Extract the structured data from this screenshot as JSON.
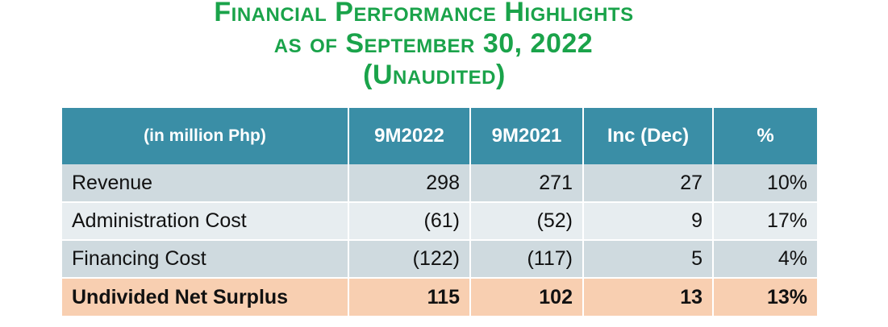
{
  "title": {
    "line1": "Financial Performance Highlights",
    "line2": "as of September 30, 2022",
    "line3": "(Unaudited)"
  },
  "colors": {
    "title_green": "#1aa34a",
    "header_teal": "#3a8ea6",
    "row_light": "#cfdadf",
    "row_lighter": "#e7edf0",
    "total_peach": "#f8cfb1"
  },
  "table": {
    "headers": [
      "(in million Php)",
      "9M2022",
      "9M2021",
      "Inc (Dec)",
      "%"
    ],
    "rows": [
      {
        "label": "Revenue",
        "y2022": "298",
        "y2021": "271",
        "inc": "27",
        "pct": "10%"
      },
      {
        "label": "Administration Cost",
        "y2022": "(61)",
        "y2021": "(52)",
        "inc": "9",
        "pct": "17%"
      },
      {
        "label": "Financing Cost",
        "y2022": "(122)",
        "y2021": "(117)",
        "inc": "5",
        "pct": "4%"
      },
      {
        "label": "Undivided Net Surplus",
        "y2022": "115",
        "y2021": "102",
        "inc": "13",
        "pct": "13%"
      }
    ]
  }
}
